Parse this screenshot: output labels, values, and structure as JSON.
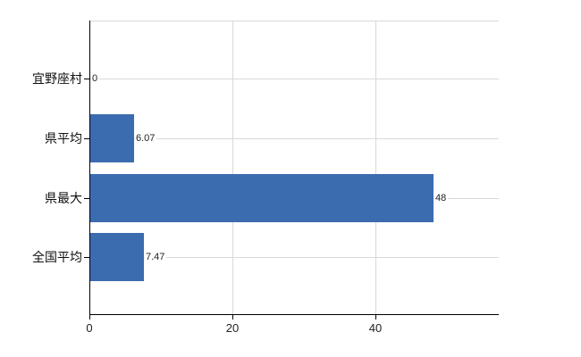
{
  "chart_data": {
    "type": "bar",
    "orientation": "horizontal",
    "title": "",
    "categories": [
      "宜野座村",
      "県平均",
      "県最大",
      "全国平均"
    ],
    "values": [
      0,
      6.07,
      48,
      7.47
    ],
    "value_labels": [
      "0",
      "6.07",
      "48",
      "7.47"
    ],
    "x_ticks": [
      0,
      20,
      40
    ],
    "x_tick_labels": [
      "0",
      "20",
      "40"
    ],
    "xlim": [
      0,
      57.25
    ],
    "grid": true,
    "legend_position": "none",
    "bar_color": "#3c6cb0",
    "grid_color": "#d9d9d9",
    "axis_color": "#000000",
    "label_color": "#111111",
    "value_label_color": "#222222"
  }
}
